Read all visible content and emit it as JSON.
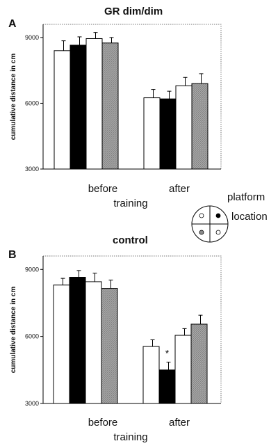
{
  "panels": [
    {
      "letter": "A",
      "title": "GR dim/dim"
    },
    {
      "letter": "B",
      "title": "control"
    }
  ],
  "legend": {
    "line1": "platform",
    "line2": "location",
    "quadrants": [
      "white",
      "black",
      "gray",
      "white"
    ]
  },
  "colors": {
    "white": "#ffffff",
    "black": "#000000",
    "gray": "#9a9a9a"
  },
  "chart_data": [
    {
      "type": "bar",
      "title": "GR dim/dim",
      "panel": "A",
      "categories": [
        "before",
        "after"
      ],
      "xlabel": "training",
      "ylabel": "cumulative distance in cm",
      "ylim": [
        3000,
        9600
      ],
      "yticks": [
        "3000",
        "6000",
        "9000"
      ],
      "series": [
        {
          "fill": "white",
          "values": [
            8400,
            6250
          ],
          "errors": [
            450,
            380
          ]
        },
        {
          "fill": "black",
          "values": [
            8650,
            6200
          ],
          "errors": [
            380,
            350
          ]
        },
        {
          "fill": "white",
          "values": [
            8950,
            6800
          ],
          "errors": [
            280,
            380
          ]
        },
        {
          "fill": "gray",
          "values": [
            8750,
            6900
          ],
          "errors": [
            250,
            450
          ]
        }
      ],
      "annotations": []
    },
    {
      "type": "bar",
      "title": "control",
      "panel": "B",
      "categories": [
        "before",
        "after"
      ],
      "xlabel": "training",
      "ylabel": "cumulative distance in cm",
      "ylim": [
        3000,
        9600
      ],
      "yticks": [
        "3000",
        "6000",
        "9000"
      ],
      "series": [
        {
          "fill": "white",
          "values": [
            8300,
            5550
          ],
          "errors": [
            300,
            300
          ]
        },
        {
          "fill": "black",
          "values": [
            8650,
            4500
          ],
          "errors": [
            300,
            350
          ]
        },
        {
          "fill": "white",
          "values": [
            8450,
            6050
          ],
          "errors": [
            380,
            300
          ]
        },
        {
          "fill": "gray",
          "values": [
            8150,
            6550
          ],
          "errors": [
            370,
            400
          ]
        }
      ],
      "annotations": [
        {
          "category": "after",
          "series": 1,
          "text": "*"
        }
      ]
    }
  ]
}
